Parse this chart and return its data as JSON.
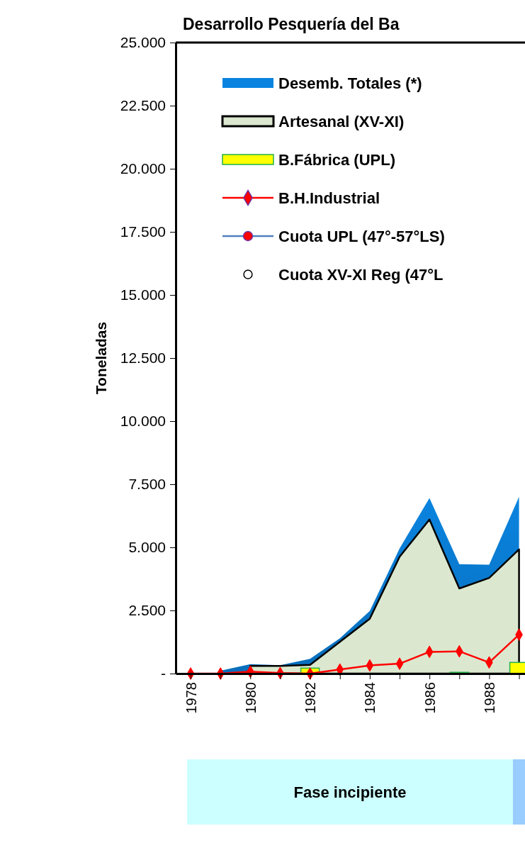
{
  "chart_data": {
    "type": "area",
    "title": "Desarrollo Pesquería del Ba",
    "ylabel": "Toneladas",
    "x": [
      1978,
      1979,
      1980,
      1981,
      1982,
      1983,
      1984,
      1985,
      1986,
      1987,
      1988,
      1989
    ],
    "xlim": [
      1977.5,
      1989.2
    ],
    "xticks": [
      {
        "value": 1978,
        "label": "1978"
      },
      {
        "value": 1979,
        "label": null
      },
      {
        "value": 1980,
        "label": "1980"
      },
      {
        "value": 1981,
        "label": null
      },
      {
        "value": 1982,
        "label": "1982"
      },
      {
        "value": 1983,
        "label": null
      },
      {
        "value": 1984,
        "label": "1984"
      },
      {
        "value": 1985,
        "label": null
      },
      {
        "value": 1986,
        "label": "1986"
      },
      {
        "value": 1987,
        "label": null
      },
      {
        "value": 1988,
        "label": "1988"
      },
      {
        "value": 1989,
        "label": null
      }
    ],
    "ylim": [
      0,
      25000
    ],
    "yticks": [
      {
        "value": 0,
        "label": "-"
      },
      {
        "value": 2500,
        "label": "2.500"
      },
      {
        "value": 5000,
        "label": "5.000"
      },
      {
        "value": 7500,
        "label": "7.500"
      },
      {
        "value": 10000,
        "label": "10.000"
      },
      {
        "value": 12500,
        "label": "12.500"
      },
      {
        "value": 15000,
        "label": "15.000"
      },
      {
        "value": 17500,
        "label": "17.500"
      },
      {
        "value": 20000,
        "label": "20.000"
      },
      {
        "value": 22500,
        "label": "22.500"
      },
      {
        "value": 25000,
        "label": "25.000"
      }
    ],
    "legend": "top left",
    "series": [
      {
        "name": "Desemb. Totales (*)",
        "color": "#0a84e0",
        "values": [
          null,
          110,
          375,
          330,
          580,
          1400,
          2480,
          4960,
          6950,
          4330,
          4310,
          7000
        ]
      },
      {
        "name": "Artesanal (XV-XI)",
        "color": "#dbe8cf",
        "values": [
          null,
          null,
          300,
          300,
          345,
          1260,
          2170,
          4630,
          6100,
          3370,
          3790,
          4920
        ]
      },
      {
        "name": "B.Fábrica (UPL)",
        "type": "bar",
        "color": "#ffff00",
        "values": [
          null,
          null,
          null,
          null,
          215,
          null,
          null,
          null,
          null,
          50,
          null,
          440
        ]
      },
      {
        "name": "B.H.Industrial",
        "type": "line",
        "color": "#ff0000",
        "marker": "diamond",
        "values": [
          0,
          0,
          75,
          20,
          0,
          160,
          320,
          390,
          860,
          880,
          440,
          1540
        ]
      },
      {
        "name": "Cuota UPL (47°-57°LS)",
        "type": "line",
        "color": "#4f81bd",
        "marker": "circle",
        "values": [
          null,
          null,
          null,
          null,
          null,
          null,
          null,
          null,
          null,
          null,
          null,
          null
        ]
      },
      {
        "name": "Cuota XV-XI Reg (47°L",
        "type": "scatter",
        "color": "#000000",
        "marker": "circle",
        "values": [
          null,
          null,
          null,
          null,
          null,
          null,
          null,
          null,
          null,
          null,
          null,
          null
        ]
      }
    ],
    "annotations": [
      "Fase incipiente"
    ]
  }
}
